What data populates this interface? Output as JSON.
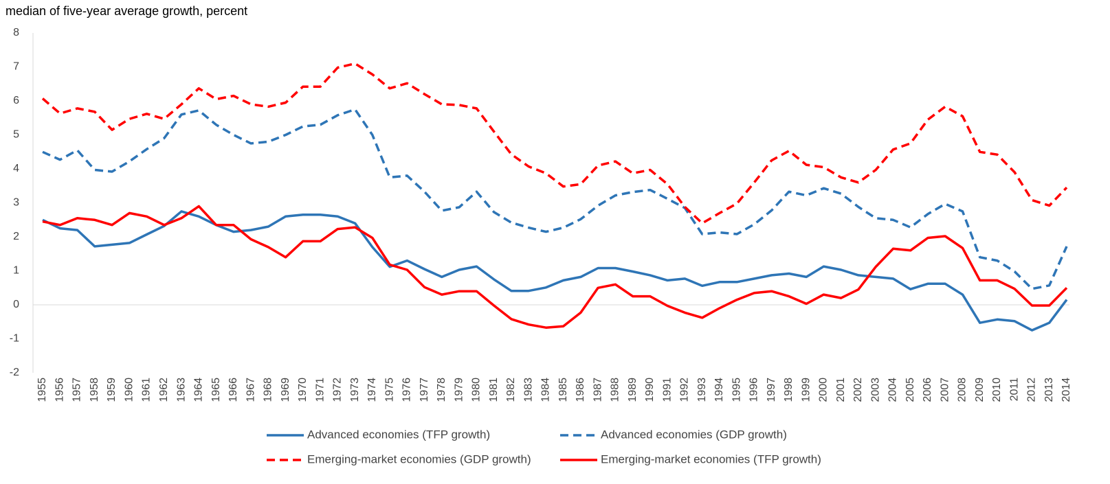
{
  "chart_data": {
    "type": "line",
    "title": "median of five-year average growth, percent",
    "x": [
      1955,
      1956,
      1957,
      1958,
      1959,
      1960,
      1961,
      1962,
      1963,
      1964,
      1965,
      1966,
      1967,
      1968,
      1969,
      1970,
      1971,
      1972,
      1973,
      1974,
      1975,
      1976,
      1977,
      1978,
      1979,
      1980,
      1981,
      1982,
      1983,
      1984,
      1985,
      1986,
      1987,
      1988,
      1989,
      1990,
      1991,
      1992,
      1993,
      1994,
      1995,
      1996,
      1997,
      1998,
      1999,
      2000,
      2001,
      2002,
      2003,
      2004,
      2005,
      2006,
      2007,
      2008,
      2009,
      2010,
      2011,
      2012,
      2013,
      2014
    ],
    "series": [
      {
        "name": "Advanced economies (TFP growth)",
        "color": "#2e75b6",
        "dashed": false,
        "values": [
          2.5,
          2.25,
          2.2,
          1.72,
          1.77,
          1.82,
          2.07,
          2.32,
          2.75,
          2.6,
          2.35,
          2.15,
          2.2,
          2.3,
          2.6,
          2.65,
          2.65,
          2.6,
          2.4,
          1.7,
          1.12,
          1.3,
          1.05,
          0.82,
          1.03,
          1.13,
          0.75,
          0.41,
          0.41,
          0.51,
          0.72,
          0.82,
          1.08,
          1.08,
          0.98,
          0.87,
          0.72,
          0.77,
          0.56,
          0.67,
          0.67,
          0.77,
          0.87,
          0.92,
          0.82,
          1.13,
          1.03,
          0.87,
          0.82,
          0.77,
          0.46,
          0.62,
          0.62,
          0.3,
          -0.53,
          -0.43,
          -0.48,
          -0.75,
          -0.53,
          0.15
        ]
      },
      {
        "name": "Advanced economies (GDP growth)",
        "color": "#2e75b6",
        "dashed": true,
        "values": [
          4.5,
          4.27,
          4.55,
          3.97,
          3.92,
          4.22,
          4.58,
          4.9,
          5.6,
          5.72,
          5.3,
          5.0,
          4.75,
          4.8,
          5.0,
          5.25,
          5.3,
          5.58,
          5.75,
          5.0,
          3.75,
          3.8,
          3.33,
          2.77,
          2.87,
          3.33,
          2.73,
          2.42,
          2.27,
          2.15,
          2.27,
          2.52,
          2.92,
          3.22,
          3.32,
          3.38,
          3.12,
          2.85,
          2.08,
          2.13,
          2.08,
          2.37,
          2.78,
          3.33,
          3.22,
          3.43,
          3.27,
          2.88,
          2.55,
          2.5,
          2.28,
          2.67,
          2.97,
          2.75,
          1.4,
          1.3,
          0.98,
          0.47,
          0.57,
          1.72
        ]
      },
      {
        "name": "Emerging-market economies (GDP growth)",
        "color": "#ff0000",
        "dashed": true,
        "values": [
          6.07,
          5.63,
          5.78,
          5.68,
          5.15,
          5.47,
          5.62,
          5.47,
          5.9,
          6.37,
          6.05,
          6.15,
          5.9,
          5.83,
          5.95,
          6.42,
          6.42,
          6.98,
          7.1,
          6.78,
          6.37,
          6.52,
          6.2,
          5.9,
          5.88,
          5.78,
          5.1,
          4.43,
          4.07,
          3.87,
          3.48,
          3.55,
          4.1,
          4.22,
          3.87,
          3.97,
          3.55,
          2.88,
          2.4,
          2.7,
          2.98,
          3.6,
          4.25,
          4.53,
          4.12,
          4.05,
          3.75,
          3.6,
          3.97,
          4.57,
          4.75,
          5.45,
          5.83,
          5.55,
          4.5,
          4.42,
          3.9,
          3.08,
          2.92,
          3.45
        ]
      },
      {
        "name": "Emerging-market economies (TFP growth)",
        "color": "#ff0000",
        "dashed": false,
        "values": [
          2.45,
          2.35,
          2.55,
          2.5,
          2.35,
          2.7,
          2.6,
          2.35,
          2.55,
          2.9,
          2.35,
          2.35,
          1.93,
          1.7,
          1.4,
          1.87,
          1.87,
          2.23,
          2.28,
          1.97,
          1.18,
          1.03,
          0.52,
          0.3,
          0.4,
          0.4,
          -0.02,
          -0.42,
          -0.58,
          -0.67,
          -0.63,
          -0.23,
          0.5,
          0.6,
          0.25,
          0.25,
          -0.03,
          -0.23,
          -0.38,
          -0.1,
          0.15,
          0.35,
          0.4,
          0.25,
          0.03,
          0.3,
          0.2,
          0.45,
          1.12,
          1.65,
          1.6,
          1.97,
          2.02,
          1.67,
          0.72,
          0.72,
          0.47,
          -0.02,
          -0.02,
          0.5
        ]
      }
    ],
    "xlim": [
      1955,
      2014
    ],
    "ylim": [
      -2,
      8
    ],
    "yticks": [
      -2,
      -1,
      0,
      1,
      2,
      3,
      4,
      5,
      6,
      7,
      8
    ],
    "grid": false
  }
}
